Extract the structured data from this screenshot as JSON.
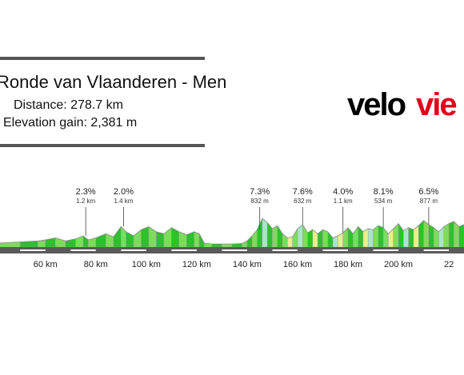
{
  "race": {
    "title": "Ronde van Vlaanderen - Men",
    "distance_text": "Distance: 278.7 km",
    "elevation_text": "Elevation gain: 2,381 m"
  },
  "logo": {
    "prefix": "velo",
    "suffix": "vie"
  },
  "colors": {
    "accent_red": "#e3001b",
    "profile_green": "#7ddc5a",
    "profile_dark_green": "#2fbf2f",
    "climb_yellow": "#e9f08a",
    "climb_mint": "#a8e6c8",
    "road_dark": "#5a5a5a"
  },
  "chart_data": {
    "type": "area",
    "title": "Ronde van Vlaanderen - Men",
    "xlabel": "",
    "ylabel": "",
    "xlim": [
      42,
      226
    ],
    "ylim": [
      0,
      100
    ],
    "x_ticks": [
      {
        "value": 60,
        "label": "60 km"
      },
      {
        "value": 80,
        "label": "80 km"
      },
      {
        "value": 100,
        "label": "100 km"
      },
      {
        "value": 120,
        "label": "120 km"
      },
      {
        "value": 140,
        "label": "140 km"
      },
      {
        "value": 160,
        "label": "160 km"
      },
      {
        "value": 180,
        "label": "180 km"
      },
      {
        "value": 200,
        "label": "200 km"
      },
      {
        "value": 220,
        "label": "22"
      }
    ],
    "climbs": [
      {
        "km": 76,
        "gradient": "2.3%",
        "length": "1.2 km"
      },
      {
        "km": 91,
        "gradient": "2.0%",
        "length": "1.4 km"
      },
      {
        "km": 145,
        "gradient": "7.3%",
        "length": "832 m"
      },
      {
        "km": 162,
        "gradient": "7.6%",
        "length": "632 m"
      },
      {
        "km": 178,
        "gradient": "4.0%",
        "length": "1.1 km"
      },
      {
        "km": 194,
        "gradient": "8.1%",
        "length": "534 m"
      },
      {
        "km": 212,
        "gradient": "6.5%",
        "length": "877 m"
      }
    ],
    "profile": [
      [
        42,
        8
      ],
      [
        50,
        10
      ],
      [
        57,
        12
      ],
      [
        60,
        14
      ],
      [
        64,
        18
      ],
      [
        68,
        12
      ],
      [
        72,
        16
      ],
      [
        75,
        22
      ],
      [
        77,
        14
      ],
      [
        80,
        18
      ],
      [
        84,
        26
      ],
      [
        87,
        20
      ],
      [
        90,
        40
      ],
      [
        92,
        30
      ],
      [
        95,
        22
      ],
      [
        98,
        34
      ],
      [
        101,
        40
      ],
      [
        104,
        30
      ],
      [
        107,
        26
      ],
      [
        110,
        38
      ],
      [
        113,
        30
      ],
      [
        116,
        24
      ],
      [
        119,
        30
      ],
      [
        121,
        26
      ],
      [
        123,
        8
      ],
      [
        126,
        6
      ],
      [
        130,
        6
      ],
      [
        134,
        6
      ],
      [
        138,
        7
      ],
      [
        140,
        12
      ],
      [
        142,
        22
      ],
      [
        144,
        34
      ],
      [
        146,
        56
      ],
      [
        148,
        48
      ],
      [
        150,
        36
      ],
      [
        152,
        42
      ],
      [
        154,
        26
      ],
      [
        156,
        18
      ],
      [
        158,
        20
      ],
      [
        160,
        36
      ],
      [
        162,
        44
      ],
      [
        164,
        28
      ],
      [
        166,
        34
      ],
      [
        168,
        26
      ],
      [
        170,
        34
      ],
      [
        172,
        30
      ],
      [
        174,
        18
      ],
      [
        176,
        22
      ],
      [
        178,
        28
      ],
      [
        180,
        38
      ],
      [
        182,
        26
      ],
      [
        184,
        40
      ],
      [
        186,
        30
      ],
      [
        188,
        36
      ],
      [
        190,
        34
      ],
      [
        192,
        42
      ],
      [
        194,
        38
      ],
      [
        196,
        26
      ],
      [
        198,
        36
      ],
      [
        200,
        46
      ],
      [
        202,
        32
      ],
      [
        204,
        38
      ],
      [
        206,
        34
      ],
      [
        208,
        42
      ],
      [
        210,
        52
      ],
      [
        212,
        44
      ],
      [
        214,
        38
      ],
      [
        216,
        30
      ],
      [
        218,
        40
      ],
      [
        220,
        46
      ],
      [
        222,
        50
      ],
      [
        224,
        40
      ],
      [
        226,
        44
      ]
    ]
  }
}
